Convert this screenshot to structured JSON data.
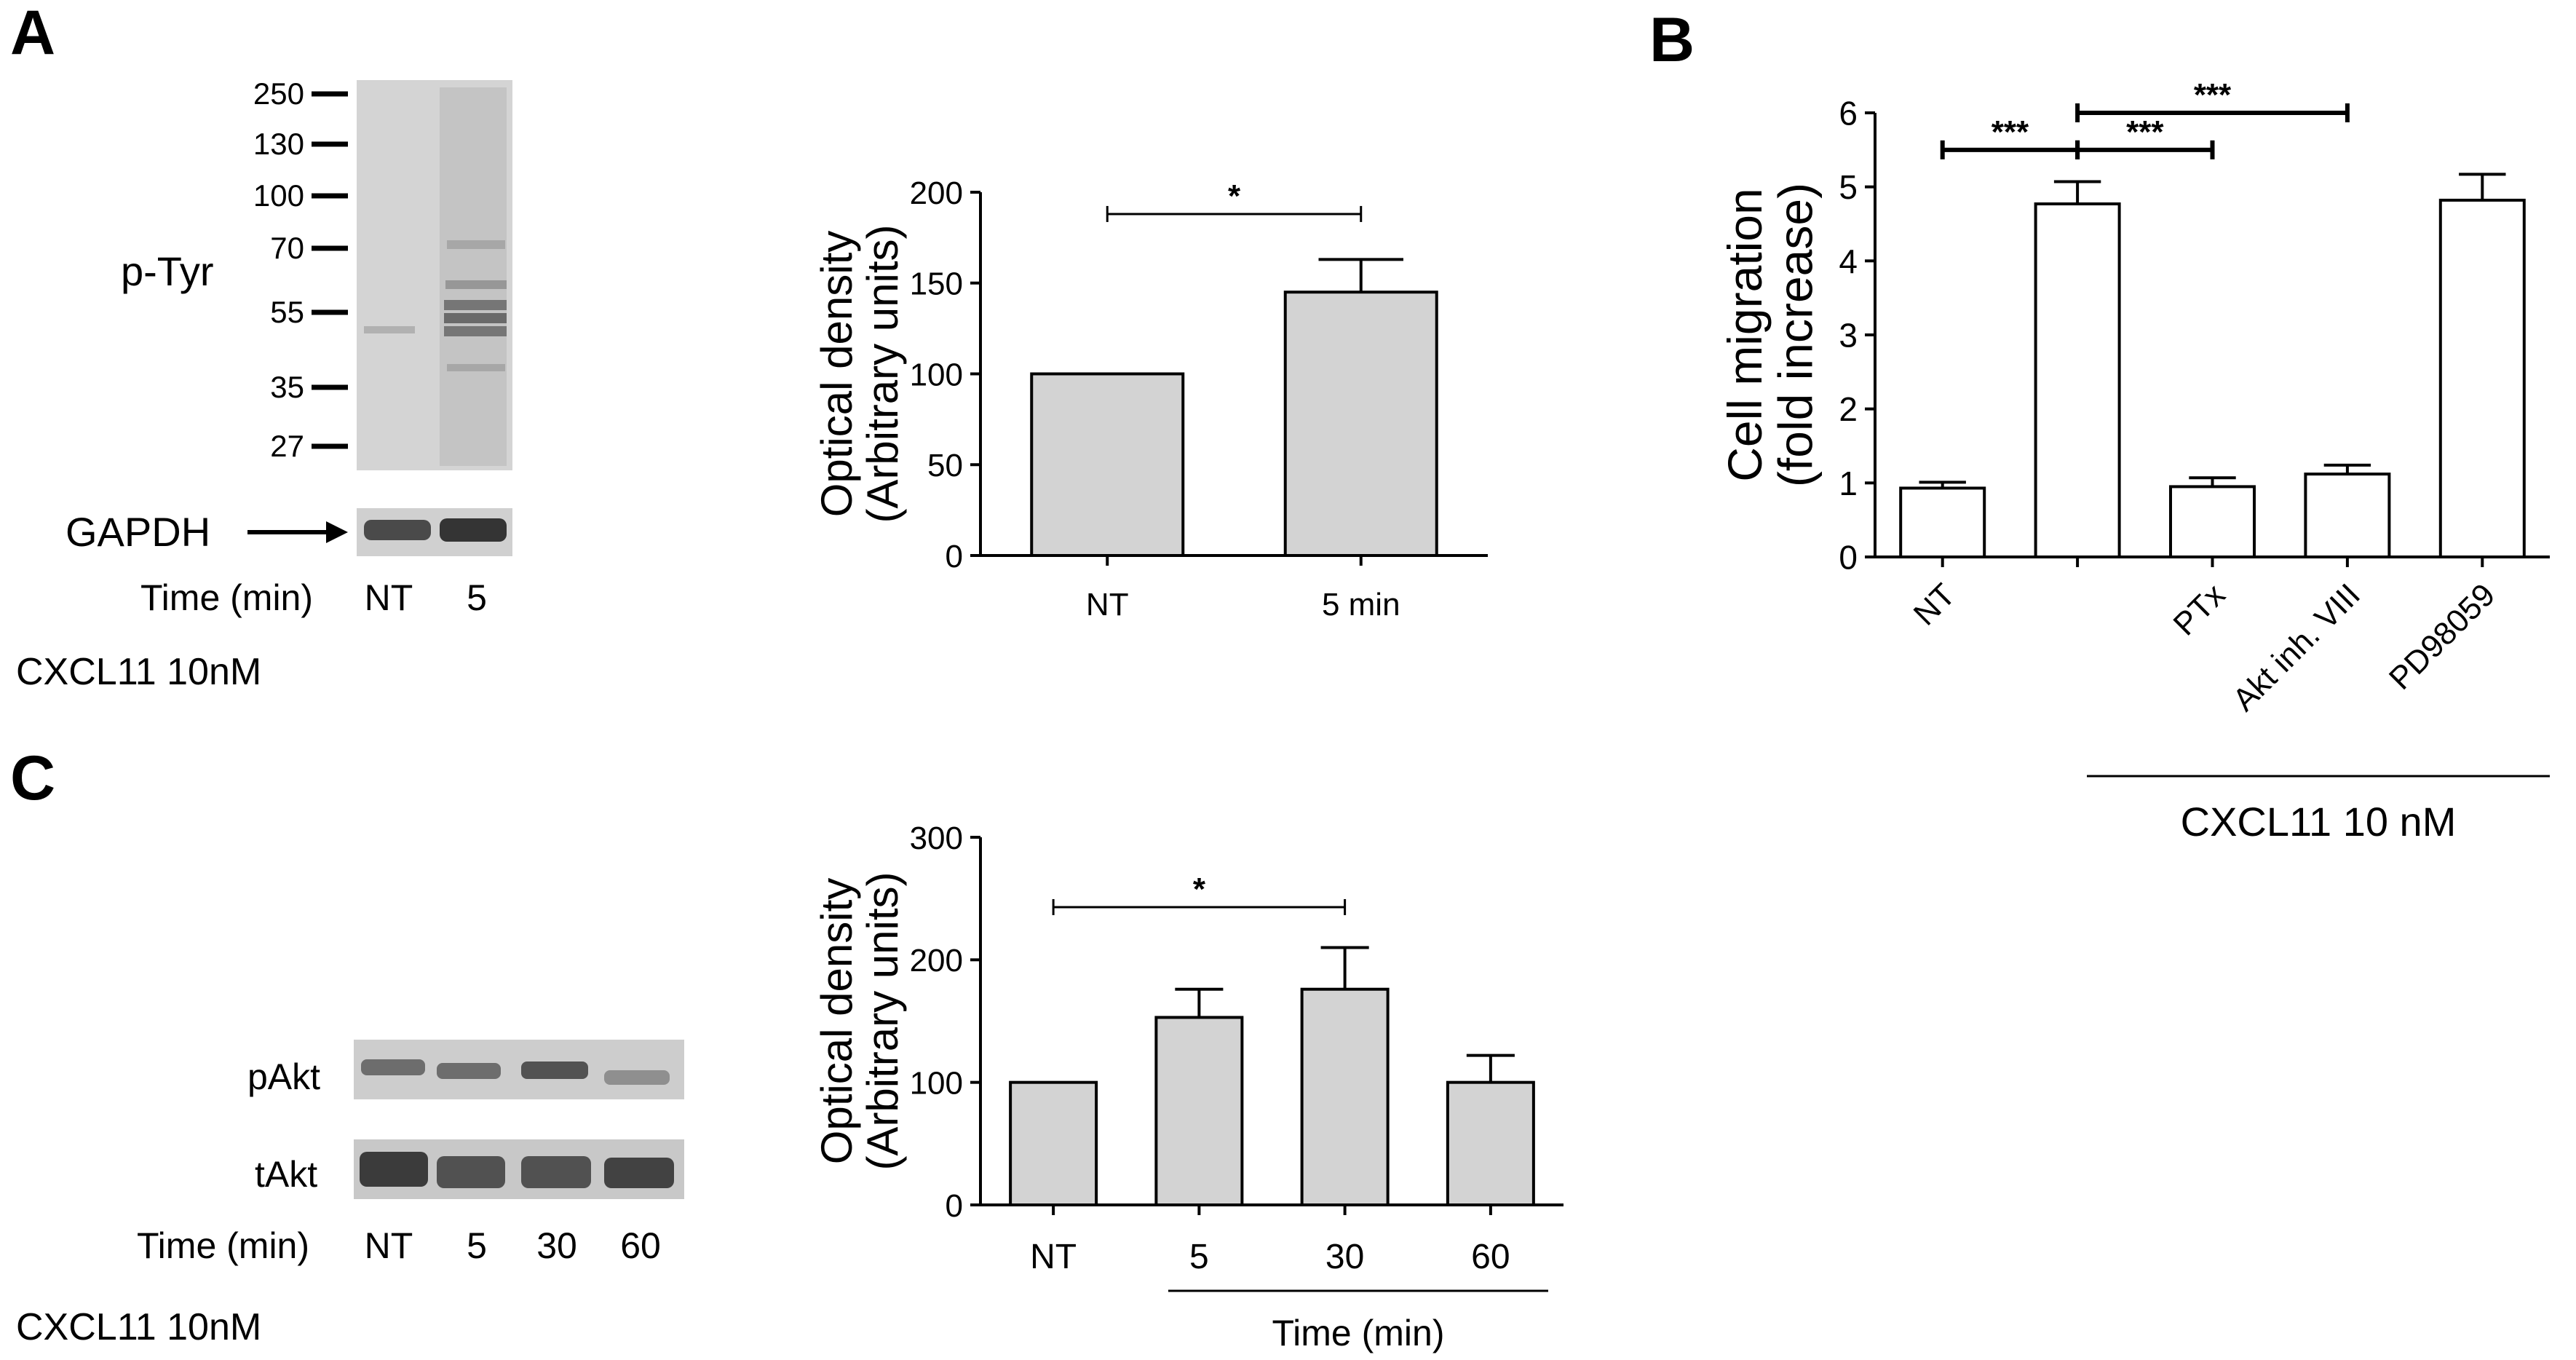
{
  "colors": {
    "bar_gray": "#d3d3d3",
    "bar_white": "#ffffff",
    "ink": "#000000",
    "blot_bg": "#c8c8c8"
  },
  "panels": {
    "A": {
      "letter": "A",
      "blot": {
        "markers": [
          "250",
          "130",
          "100",
          "70",
          "55",
          "35",
          "27"
        ],
        "label_ptyr": "p-Tyr",
        "label_gapdh": "GAPDH",
        "time_label": "Time (min)",
        "lanes": [
          "NT",
          "5"
        ],
        "treatment": "CXCL11 10nM"
      }
    },
    "B": {
      "letter": "B"
    },
    "C": {
      "letter": "C",
      "blot": {
        "label_pakt": "pAkt",
        "label_takt": "tAkt",
        "time_label": "Time (min)",
        "lanes": [
          "NT",
          "5",
          "30",
          "60"
        ],
        "treatment": "CXCL11 10nM"
      }
    }
  },
  "chart_data": [
    {
      "id": "A",
      "type": "bar",
      "title": "",
      "ylabel": [
        "Optical density",
        "(Arbitrary units)"
      ],
      "xlabel": "",
      "categories": [
        "NT",
        "5 min"
      ],
      "values": [
        100,
        145
      ],
      "errors": [
        0,
        18
      ],
      "ylim": [
        0,
        200
      ],
      "yticks": [
        "0",
        "50",
        "100",
        "150",
        "200"
      ],
      "significance": [
        {
          "from": 0,
          "to": 1,
          "label": "*",
          "y": 188
        }
      ]
    },
    {
      "id": "B",
      "type": "bar",
      "title": "",
      "ylabel": [
        "Cell migration",
        "(fold increase)"
      ],
      "xlabel": "CXCL11  10 nM",
      "categories": [
        "NT",
        "",
        "PTx",
        "Akt inh. VIII",
        "PD98059"
      ],
      "values": [
        0.93,
        4.77,
        0.95,
        1.12,
        4.82
      ],
      "errors": [
        0.08,
        0.3,
        0.12,
        0.12,
        0.35
      ],
      "ylim": [
        0,
        6
      ],
      "yticks": [
        "0",
        "1",
        "2",
        "3",
        "4",
        "5",
        "6"
      ],
      "significance": [
        {
          "from": 0,
          "to": 1,
          "label": "***",
          "y": 5.5
        },
        {
          "from": 1,
          "to": 2,
          "label": "***",
          "y": 5.5
        },
        {
          "from": 1,
          "to": 3,
          "label": "***",
          "y": 6.0
        }
      ]
    },
    {
      "id": "C",
      "type": "bar",
      "title": "",
      "ylabel": [
        "Optical density",
        "(Arbitrary units)"
      ],
      "xlabel": "Time (min)",
      "categories": [
        "NT",
        "5",
        "30",
        "60"
      ],
      "values": [
        100,
        153,
        176,
        100
      ],
      "errors": [
        0,
        23,
        34,
        22
      ],
      "ylim": [
        0,
        300
      ],
      "yticks": [
        "0",
        "100",
        "200",
        "300"
      ],
      "significance": [
        {
          "from": 0,
          "to": 2,
          "label": "*",
          "y": 243
        }
      ]
    }
  ]
}
